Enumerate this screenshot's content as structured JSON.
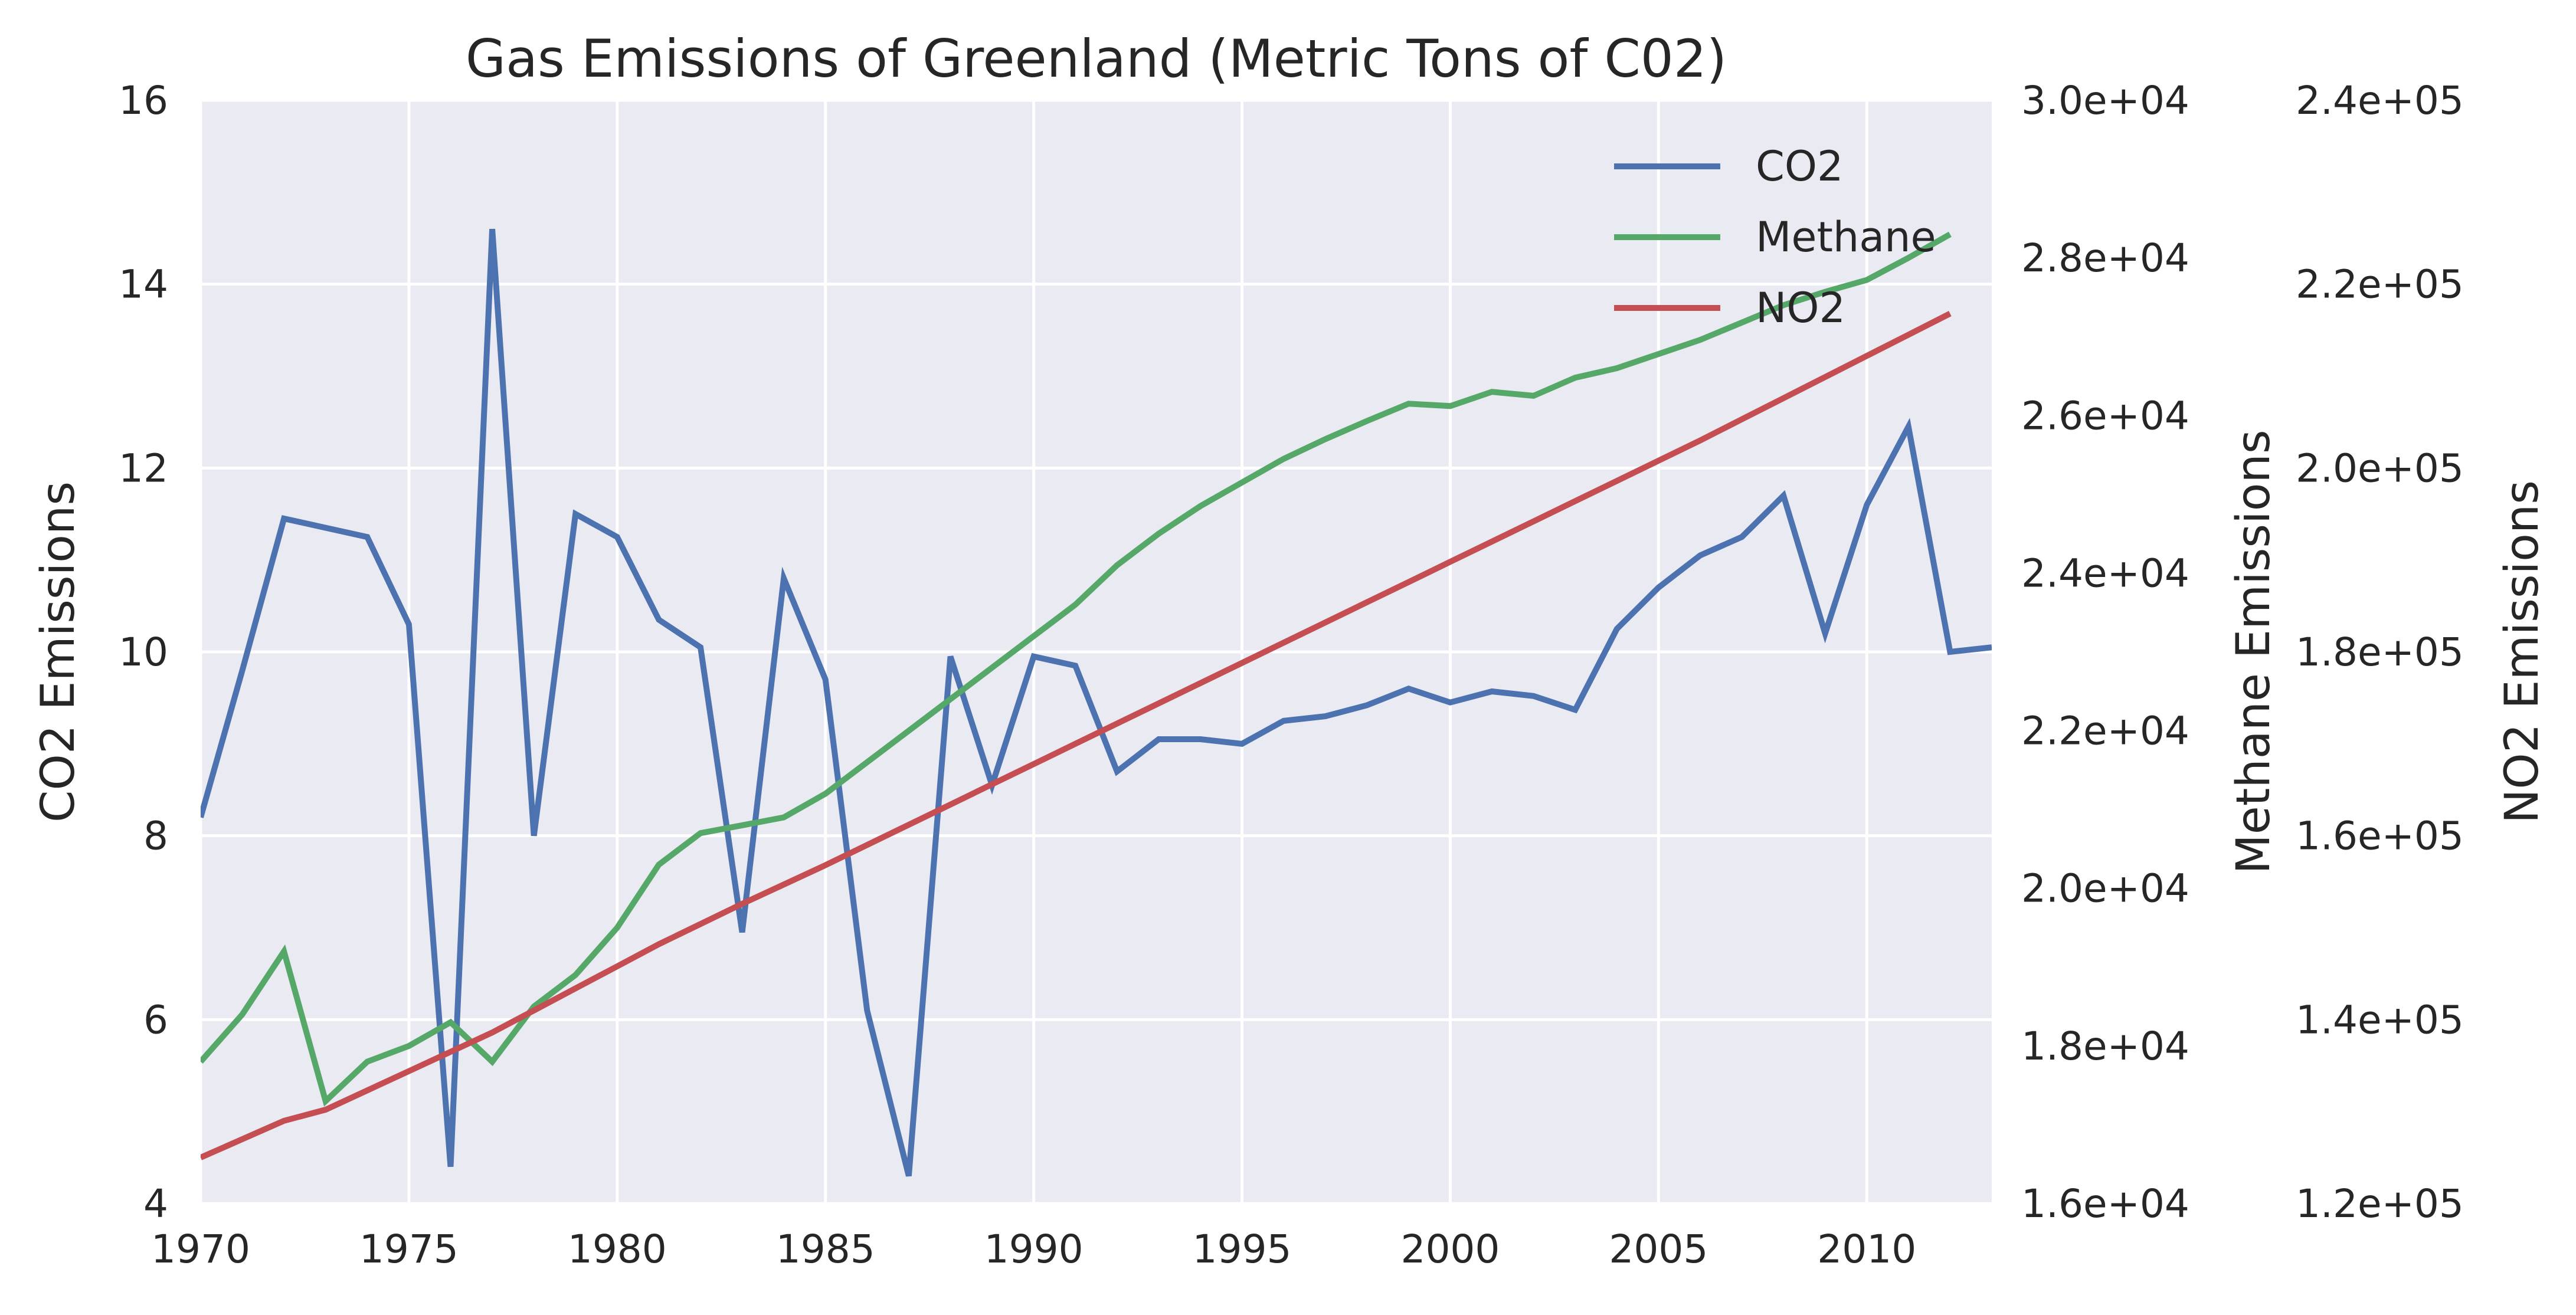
{
  "chart_data": {
    "type": "line",
    "title": "Gas Emissions of Greenland (Metric Tons of C02)",
    "x": [
      1970,
      1971,
      1972,
      1973,
      1974,
      1975,
      1976,
      1977,
      1978,
      1979,
      1980,
      1981,
      1982,
      1983,
      1984,
      1985,
      1986,
      1987,
      1988,
      1989,
      1990,
      1991,
      1992,
      1993,
      1994,
      1995,
      1996,
      1997,
      1998,
      1999,
      2000,
      2001,
      2002,
      2003,
      2004,
      2005,
      2006,
      2007,
      2008,
      2009,
      2010,
      2011,
      2012,
      2013
    ],
    "xlim": [
      1970,
      2013
    ],
    "x_ticks": [
      "1970",
      "1975",
      "1980",
      "1985",
      "1990",
      "1995",
      "2000",
      "2005",
      "2010"
    ],
    "grid": true,
    "legend_position": "top-right",
    "axes": {
      "left": {
        "label": "CO2 Emissions",
        "ylim": [
          4,
          16
        ],
        "ticks": [
          {
            "value": 4,
            "label": "4"
          },
          {
            "value": 6,
            "label": "6"
          },
          {
            "value": 8,
            "label": "8"
          },
          {
            "value": 10,
            "label": "10"
          },
          {
            "value": 12,
            "label": "12"
          },
          {
            "value": 14,
            "label": "14"
          },
          {
            "value": 16,
            "label": "16"
          }
        ]
      },
      "right1": {
        "label": "Methane Emissions",
        "ylim": [
          16000,
          30000
        ],
        "ticks": [
          {
            "value": 16000,
            "label": "1.6e+04"
          },
          {
            "value": 18000,
            "label": "1.8e+04"
          },
          {
            "value": 20000,
            "label": "2.0e+04"
          },
          {
            "value": 22000,
            "label": "2.2e+04"
          },
          {
            "value": 24000,
            "label": "2.4e+04"
          },
          {
            "value": 26000,
            "label": "2.6e+04"
          },
          {
            "value": 28000,
            "label": "2.8e+04"
          },
          {
            "value": 30000,
            "label": "3.0e+04"
          }
        ]
      },
      "right2": {
        "label": "NO2 Emissions",
        "ylim": [
          120000,
          240000
        ],
        "ticks": [
          {
            "value": 120000,
            "label": "1.2e+05"
          },
          {
            "value": 140000,
            "label": "1.4e+05"
          },
          {
            "value": 160000,
            "label": "1.6e+05"
          },
          {
            "value": 180000,
            "label": "1.8e+05"
          },
          {
            "value": 200000,
            "label": "2.0e+05"
          },
          {
            "value": 220000,
            "label": "2.2e+05"
          },
          {
            "value": 240000,
            "label": "2.4e+05"
          }
        ]
      }
    },
    "series": [
      {
        "name": "CO2",
        "axis": "left",
        "color": "#4c72b0",
        "values": [
          8.2,
          9.8,
          11.45,
          11.35,
          11.25,
          10.3,
          4.4,
          14.6,
          8.0,
          11.5,
          11.25,
          10.35,
          10.05,
          6.95,
          10.8,
          9.7,
          6.1,
          4.3,
          9.95,
          8.55,
          9.95,
          9.85,
          8.7,
          9.05,
          9.05,
          9.0,
          9.25,
          9.3,
          9.42,
          9.6,
          9.45,
          9.57,
          9.52,
          9.37,
          10.25,
          10.7,
          11.05,
          11.25,
          11.7,
          10.2,
          11.6,
          12.45,
          10.0,
          10.05
        ]
      },
      {
        "name": "Methane",
        "axis": "right1",
        "color": "#55a868",
        "values": [
          17800,
          18400,
          19200,
          17300,
          17800,
          18000,
          18300,
          17800,
          18500,
          18900,
          19500,
          20300,
          20700,
          20800,
          20900,
          21200,
          21600,
          22000,
          22400,
          22800,
          23200,
          23600,
          24100,
          24500,
          24850,
          25150,
          25450,
          25700,
          25930,
          26150,
          26120,
          26300,
          26250,
          26480,
          26600,
          26780,
          26960,
          27180,
          27400,
          27570,
          27720,
          28000,
          28300,
          null
        ]
      },
      {
        "name": "NO2",
        "axis": "right2",
        "color": "#c44e52",
        "values": [
          125000,
          127000,
          129000,
          130200,
          132300,
          134400,
          136500,
          138600,
          141000,
          143400,
          145800,
          148200,
          150400,
          152600,
          154700,
          156800,
          159000,
          161200,
          163400,
          165600,
          167800,
          170000,
          172200,
          174400,
          176600,
          178800,
          181000,
          183200,
          185400,
          187600,
          189800,
          192000,
          194200,
          196400,
          198600,
          200800,
          203000,
          205300,
          207600,
          209900,
          212200,
          214500,
          216800,
          null
        ]
      }
    ]
  }
}
